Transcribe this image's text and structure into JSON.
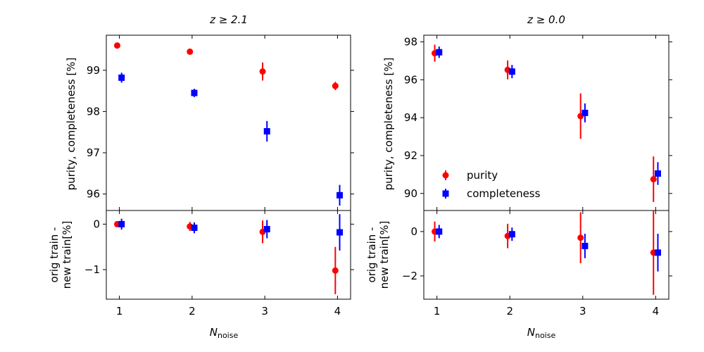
{
  "colors": {
    "purity": "#ff0000",
    "completeness": "#0000ff"
  },
  "legend": {
    "purity": "purity",
    "completeness": "completeness"
  },
  "xlabel": {
    "main": "N",
    "sub": "noise"
  },
  "chart_data": [
    {
      "type": "scatter",
      "panel": "top-left",
      "title": "z ≥ 2.1",
      "ylabel": "purity, completeness [%]",
      "xlim": [
        0.82,
        4.18
      ],
      "ylim": [
        95.6,
        99.85
      ],
      "xticks": [
        1,
        2,
        3,
        4
      ],
      "yticks": [
        96,
        97,
        98,
        99
      ],
      "series": [
        {
          "name": "purity",
          "marker": "circle",
          "x": [
            0.97,
            1.97,
            2.97,
            3.97
          ],
          "y": [
            99.6,
            99.45,
            98.97,
            98.62
          ],
          "err": [
            0.0,
            0.0,
            0.22,
            0.1
          ]
        },
        {
          "name": "completeness",
          "marker": "square",
          "x": [
            1.03,
            2.03,
            3.03,
            4.03
          ],
          "y": [
            98.82,
            98.45,
            97.52,
            95.97
          ],
          "err": [
            0.12,
            0.1,
            0.25,
            0.25
          ]
        }
      ]
    },
    {
      "type": "scatter",
      "panel": "top-right",
      "title": "z ≥ 0.0",
      "ylabel": "purity, completeness [%]",
      "xlim": [
        0.82,
        4.18
      ],
      "ylim": [
        89.1,
        98.35
      ],
      "xticks": [
        1,
        2,
        3,
        4
      ],
      "yticks": [
        90,
        92,
        94,
        96,
        98
      ],
      "legend_position": "lower-left",
      "series": [
        {
          "name": "purity",
          "marker": "circle",
          "x": [
            0.97,
            1.97,
            2.97,
            3.97
          ],
          "y": [
            97.4,
            96.52,
            94.08,
            90.75
          ],
          "err": [
            0.45,
            0.5,
            1.2,
            1.2
          ]
        },
        {
          "name": "completeness",
          "marker": "square",
          "x": [
            1.03,
            2.03,
            3.03,
            4.03
          ],
          "y": [
            97.45,
            96.43,
            94.25,
            91.05
          ],
          "err": [
            0.3,
            0.35,
            0.5,
            0.6
          ]
        }
      ]
    },
    {
      "type": "scatter",
      "panel": "bottom-left",
      "ylabel": [
        "orig train -",
        "new train[%]"
      ],
      "xlim": [
        0.82,
        4.18
      ],
      "ylim": [
        -1.65,
        0.3
      ],
      "xticks": [
        1,
        2,
        3,
        4
      ],
      "yticks": [
        -1,
        0
      ],
      "series": [
        {
          "name": "purity",
          "marker": "circle",
          "x": [
            0.97,
            1.97,
            2.97,
            3.97
          ],
          "y": [
            0.0,
            -0.05,
            -0.17,
            -1.02
          ],
          "err": [
            0.0,
            0.1,
            0.25,
            0.52
          ]
        },
        {
          "name": "completeness",
          "marker": "square",
          "x": [
            1.03,
            2.03,
            3.03,
            4.03
          ],
          "y": [
            0.0,
            -0.08,
            -0.11,
            -0.18
          ],
          "err": [
            0.12,
            0.12,
            0.2,
            0.4
          ]
        }
      ]
    },
    {
      "type": "scatter",
      "panel": "bottom-right",
      "ylabel": [
        "orig train -",
        "new train[%]"
      ],
      "xlim": [
        0.82,
        4.18
      ],
      "ylim": [
        -3.05,
        0.95
      ],
      "xticks": [
        1,
        2,
        3,
        4
      ],
      "yticks": [
        -2,
        0
      ],
      "series": [
        {
          "name": "purity",
          "marker": "circle",
          "x": [
            0.97,
            1.97,
            2.97,
            3.97
          ],
          "y": [
            0.0,
            -0.2,
            -0.28,
            -0.95
          ],
          "err": [
            0.45,
            0.55,
            1.15,
            1.9
          ]
        },
        {
          "name": "completeness",
          "marker": "square",
          "x": [
            1.03,
            2.03,
            3.03,
            4.03
          ],
          "y": [
            0.0,
            -0.12,
            -0.65,
            -0.95
          ],
          "err": [
            0.3,
            0.3,
            0.55,
            0.85
          ]
        }
      ]
    }
  ]
}
